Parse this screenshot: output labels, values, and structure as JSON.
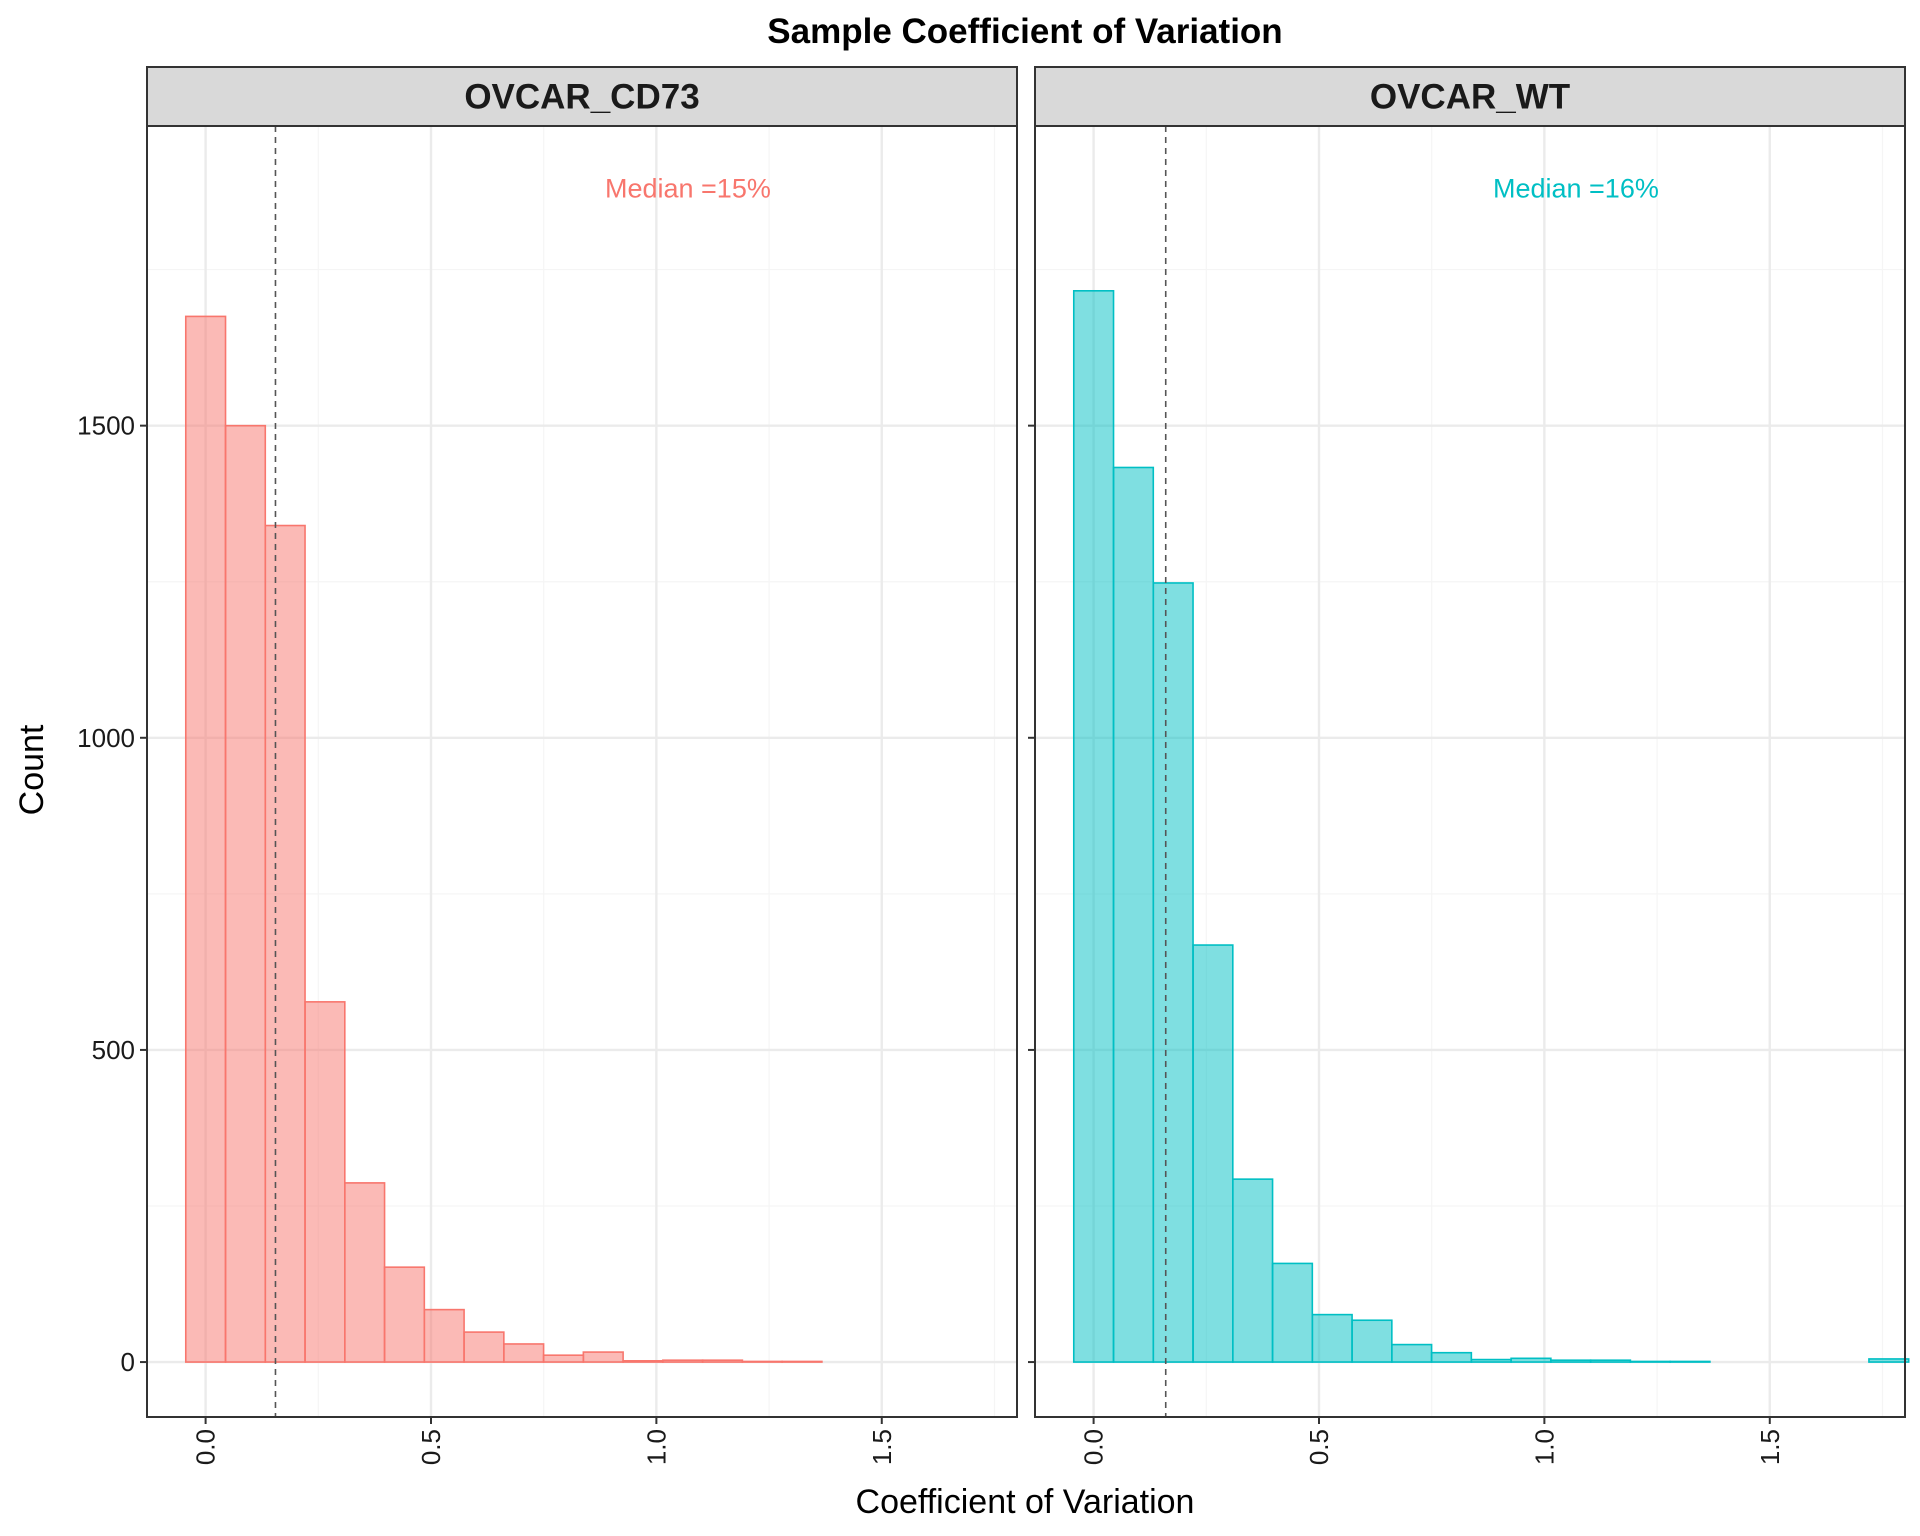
{
  "chart_data": {
    "type": "bar",
    "title": "Sample Coefficient of Variation",
    "xlabel": "Coefficient of Variation",
    "ylabel": "Count",
    "xlim": [
      -0.13,
      1.8
    ],
    "ylim": [
      -88,
      1980
    ],
    "xticks": [
      0.0,
      0.5,
      1.0,
      1.5
    ],
    "xtick_labels": [
      "0.0",
      "0.5",
      "1.0",
      "1.5"
    ],
    "yticks": [
      0,
      500,
      1000,
      1500
    ],
    "ytick_labels": [
      "0",
      "500",
      "1000",
      "1500"
    ],
    "y_minor_gridlines": [
      250,
      750,
      1250,
      1750
    ],
    "x_minor_gridlines": [
      0.25,
      0.75,
      1.25,
      1.75
    ],
    "grid": true,
    "bin_width": 0.0882,
    "first_bin_left": -0.044,
    "panels": [
      {
        "name": "OVCAR_CD73",
        "fill": "#F8766D",
        "fill_opacity": 0.5,
        "median_cv": 0.155,
        "median_label": "Median =15%",
        "median_label_x": 1.07,
        "median_label_y": 1880,
        "counts": [
          1675,
          1500,
          1340,
          577,
          287,
          152,
          84,
          48,
          29,
          11,
          16,
          2,
          3,
          3,
          1,
          1,
          0,
          0,
          0,
          0,
          0
        ]
      },
      {
        "name": "OVCAR_WT",
        "fill": "#00BFC4",
        "fill_opacity": 0.5,
        "median_cv": 0.16,
        "median_label": "Median =16%",
        "median_label_x": 1.07,
        "median_label_y": 1880,
        "counts": [
          1716,
          1433,
          1248,
          668,
          293,
          158,
          76,
          67,
          28,
          15,
          4,
          6,
          3,
          3,
          1,
          1,
          0,
          0,
          0,
          0,
          5
        ]
      }
    ]
  },
  "colors": {
    "panel_border": "#333333",
    "strip_background": "#D9D9D9",
    "major_grid": "#EBEBEB",
    "minor_grid": "#F5F5F5",
    "median_line": "#555555"
  }
}
